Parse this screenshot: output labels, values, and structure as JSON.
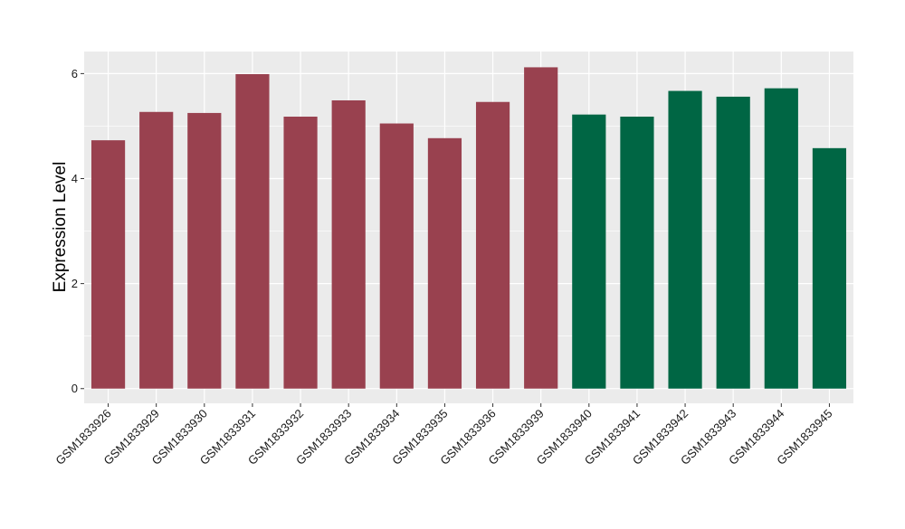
{
  "chart_data": {
    "type": "bar",
    "title": "",
    "xlabel": "",
    "ylabel": "Expression Level",
    "ylim": [
      -0.28,
      6.42
    ],
    "y_ticks": [
      0,
      2,
      4,
      6
    ],
    "grid": true,
    "legend": "none",
    "categories": [
      "GSM1833926",
      "GSM1833929",
      "GSM1833930",
      "GSM1833931",
      "GSM1833932",
      "GSM1833933",
      "GSM1833934",
      "GSM1833935",
      "GSM1833936",
      "GSM1833939",
      "GSM1833940",
      "GSM1833941",
      "GSM1833942",
      "GSM1833943",
      "GSM1833944",
      "GSM1833945"
    ],
    "values": [
      4.73,
      5.27,
      5.25,
      5.99,
      5.18,
      5.49,
      5.05,
      4.77,
      5.46,
      6.12,
      5.22,
      5.18,
      5.67,
      5.56,
      5.72,
      4.58
    ],
    "groups": [
      "red",
      "red",
      "red",
      "red",
      "red",
      "red",
      "red",
      "red",
      "red",
      "red",
      "green",
      "green",
      "green",
      "green",
      "green",
      "green"
    ],
    "colors": {
      "red": "#99414f",
      "green": "#006644",
      "panel": "#ebebeb",
      "grid": "#ffffff"
    }
  }
}
